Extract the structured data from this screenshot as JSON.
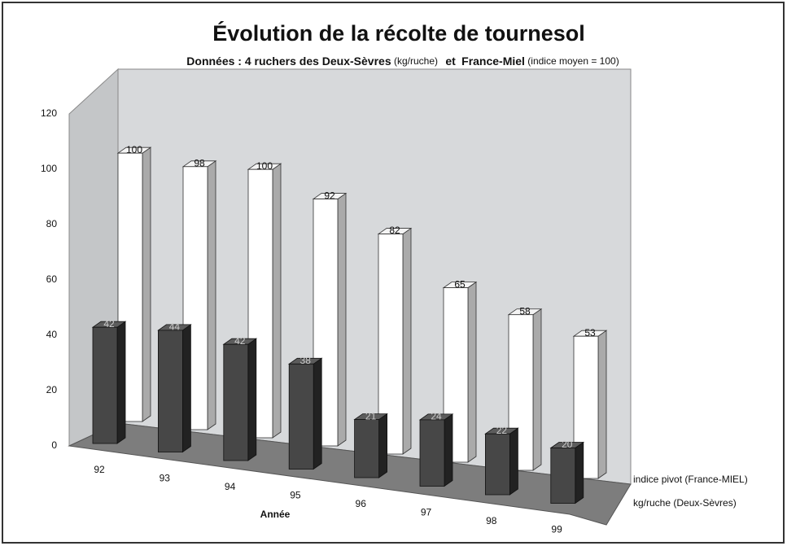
{
  "chart_data": {
    "type": "bar3d",
    "title": "Évolution de la récolte de tournesol",
    "subtitle": [
      "Données :  4 ruchers des Deux-Sèvres",
      "(kg/ruche)",
      "et",
      "France-Miel",
      "(indice moyen = 100)"
    ],
    "x_label": "Année",
    "categories": [
      "92",
      "93",
      "94",
      "95",
      "96",
      "97",
      "98",
      "99"
    ],
    "series": [
      {
        "name": "indice pivot (France-MIEL)",
        "color": "#ffffff",
        "values": [
          100,
          98,
          100,
          92,
          82,
          65,
          58,
          53
        ]
      },
      {
        "name": "kg/ruche  (Deux-Sèvres)",
        "color": "#474747",
        "values": [
          42,
          44,
          42,
          38,
          21,
          24,
          22,
          20
        ]
      }
    ],
    "ylim": [
      0,
      120
    ],
    "yticks": [
      0,
      20,
      40,
      60,
      80,
      100,
      120
    ]
  }
}
